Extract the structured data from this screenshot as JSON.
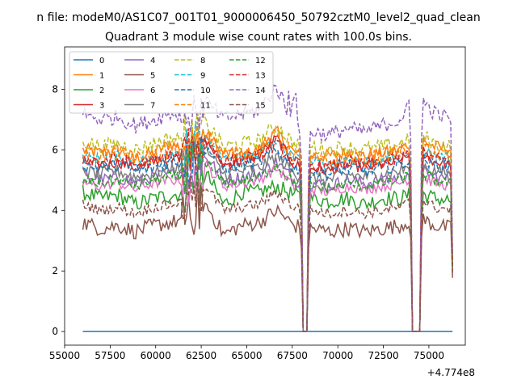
{
  "figure": {
    "suptitle": "n file: modeM0/AS1C07_001T01_9000006450_50792cztM0_level2_quad_clean",
    "offset_text": "+4.774e8"
  },
  "chart_data": {
    "type": "line",
    "title": "Quadrant 3 module wise count rates with 100.0s bins.",
    "xlabel": "",
    "ylabel": "",
    "x_offset": 477400000,
    "xlim": [
      55000,
      77000
    ],
    "ylim": [
      -0.45,
      9.4
    ],
    "x_ticks": [
      55000,
      57500,
      60000,
      62500,
      65000,
      67500,
      70000,
      72500,
      75000
    ],
    "x_tick_labels": [
      "55000",
      "57500",
      "60000",
      "62500",
      "65000",
      "67500",
      "70000",
      "72500",
      "75000"
    ],
    "y_ticks": [
      0,
      2,
      4,
      6,
      8
    ],
    "y_tick_labels": [
      "0",
      "2",
      "4",
      "6",
      "8"
    ],
    "grid": false,
    "legend_position": "upper-left",
    "legend_columns": 4,
    "x_range_data": [
      56000,
      76300
    ],
    "gaps": [
      [
        68100,
        68300
      ],
      [
        74100,
        74500
      ]
    ],
    "series": [
      {
        "name": "0",
        "color": "#1f77b4",
        "dash": "solid",
        "values": [
          0,
          0,
          0,
          0,
          0,
          0,
          0,
          0,
          0,
          0,
          0,
          0,
          0,
          0,
          0,
          0,
          0,
          0,
          0,
          0,
          0,
          0
        ]
      },
      {
        "name": "1",
        "color": "#ff7f0e",
        "dash": "solid",
        "values": [
          6.0,
          5.9,
          6.0,
          5.7,
          5.9,
          6.2,
          6.0,
          6.5,
          5.9,
          5.8,
          6.0,
          6.6,
          5.9,
          5.8,
          5.8,
          5.9,
          5.8,
          5.9,
          6.0,
          6.4,
          6.1,
          6.0
        ]
      },
      {
        "name": "2",
        "color": "#2ca02c",
        "dash": "solid",
        "values": [
          4.6,
          4.4,
          4.5,
          4.2,
          4.4,
          4.5,
          4.6,
          5.2,
          4.2,
          4.6,
          4.6,
          4.8,
          4.5,
          4.4,
          4.3,
          4.4,
          4.2,
          4.4,
          4.4,
          4.6,
          4.4,
          4.3
        ]
      },
      {
        "name": "3",
        "color": "#d62728",
        "dash": "solid",
        "values": [
          5.6,
          5.5,
          5.6,
          5.4,
          5.6,
          5.8,
          5.7,
          6.3,
          5.5,
          5.6,
          5.8,
          6.4,
          5.5,
          5.4,
          5.3,
          5.5,
          5.4,
          5.5,
          5.6,
          6.0,
          5.6,
          5.5
        ]
      },
      {
        "name": "4",
        "color": "#9467bd",
        "dash": "solid",
        "values": [
          5.2,
          5.0,
          5.1,
          4.9,
          5.1,
          5.2,
          5.3,
          5.8,
          5.0,
          5.1,
          5.2,
          5.6,
          5.0,
          4.9,
          4.8,
          5.0,
          4.9,
          5.0,
          5.1,
          5.4,
          5.1,
          5.0
        ]
      },
      {
        "name": "5",
        "color": "#8c564b",
        "dash": "solid",
        "values": [
          3.6,
          3.4,
          3.5,
          3.3,
          3.5,
          3.6,
          3.7,
          4.2,
          3.2,
          3.5,
          3.6,
          4.0,
          3.5,
          3.4,
          3.3,
          3.4,
          3.3,
          3.4,
          3.5,
          3.8,
          3.5,
          3.4
        ]
      },
      {
        "name": "6",
        "color": "#e377c2",
        "dash": "solid",
        "values": [
          4.9,
          4.8,
          4.9,
          4.7,
          4.9,
          5.0,
          5.0,
          5.5,
          4.8,
          4.9,
          5.0,
          5.4,
          4.8,
          4.7,
          4.6,
          4.8,
          4.7,
          4.8,
          4.9,
          5.2,
          4.9,
          4.8
        ]
      },
      {
        "name": "7",
        "color": "#7f7f7f",
        "dash": "solid",
        "values": [
          5.3,
          5.2,
          5.3,
          5.1,
          5.2,
          5.4,
          5.4,
          6.0,
          5.2,
          5.3,
          5.4,
          5.8,
          5.2,
          5.1,
          5.0,
          5.2,
          5.1,
          5.2,
          5.3,
          5.6,
          5.3,
          5.2
        ]
      },
      {
        "name": "8",
        "color": "#bcbd22",
        "dash": "dashed",
        "values": [
          6.3,
          6.1,
          6.2,
          6.0,
          6.2,
          6.4,
          6.3,
          6.9,
          6.1,
          6.2,
          6.3,
          6.8,
          6.2,
          6.1,
          6.0,
          6.1,
          6.0,
          6.1,
          6.2,
          6.6,
          6.2,
          6.1
        ]
      },
      {
        "name": "9",
        "color": "#17becf",
        "dash": "dashed",
        "values": [
          5.8,
          5.7,
          5.8,
          5.6,
          5.7,
          5.9,
          5.9,
          6.4,
          5.7,
          5.8,
          5.9,
          6.3,
          5.7,
          5.6,
          5.5,
          5.7,
          5.6,
          5.7,
          5.8,
          6.1,
          5.8,
          5.7
        ]
      },
      {
        "name": "10",
        "color": "#1f77b4",
        "dash": "dashed",
        "values": [
          5.5,
          5.4,
          5.5,
          5.3,
          5.4,
          5.6,
          5.6,
          6.1,
          5.4,
          5.5,
          5.6,
          6.0,
          5.4,
          5.3,
          5.2,
          5.4,
          5.3,
          5.4,
          5.5,
          5.8,
          5.5,
          5.4
        ]
      },
      {
        "name": "11",
        "color": "#ff7f0e",
        "dash": "dashed",
        "values": [
          5.9,
          5.8,
          5.9,
          5.7,
          5.8,
          6.0,
          6.0,
          6.6,
          5.8,
          5.9,
          6.0,
          6.5,
          5.8,
          5.7,
          5.6,
          5.8,
          5.7,
          5.8,
          5.9,
          6.3,
          5.9,
          5.8
        ]
      },
      {
        "name": "12",
        "color": "#2ca02c",
        "dash": "dashed",
        "values": [
          5.0,
          4.9,
          5.0,
          4.8,
          5.0,
          5.1,
          5.1,
          5.6,
          4.9,
          5.0,
          5.1,
          5.5,
          4.9,
          4.8,
          4.7,
          4.9,
          4.8,
          4.9,
          5.0,
          5.3,
          5.0,
          4.9
        ]
      },
      {
        "name": "13",
        "color": "#d62728",
        "dash": "dashed",
        "values": [
          5.7,
          5.6,
          5.7,
          5.5,
          5.6,
          5.8,
          5.8,
          6.3,
          5.6,
          5.7,
          5.8,
          6.2,
          5.6,
          5.5,
          5.4,
          5.6,
          5.5,
          5.6,
          5.7,
          6.0,
          5.7,
          5.6
        ]
      },
      {
        "name": "14",
        "color": "#9467bd",
        "dash": "dashed",
        "values": [
          7.2,
          7.0,
          7.1,
          6.8,
          7.0,
          7.2,
          7.1,
          7.6,
          7.0,
          7.2,
          7.3,
          8.1,
          6.8,
          6.6,
          6.5,
          6.7,
          6.6,
          6.8,
          7.0,
          7.8,
          7.2,
          7.0
        ]
      },
      {
        "name": "15",
        "color": "#8c564b",
        "dash": "dashed",
        "values": [
          4.2,
          4.0,
          4.1,
          3.9,
          4.1,
          4.2,
          4.3,
          4.8,
          4.0,
          4.1,
          4.2,
          4.6,
          4.1,
          4.0,
          3.9,
          4.0,
          3.9,
          4.0,
          4.1,
          4.4,
          4.1,
          4.0
        ]
      }
    ]
  }
}
